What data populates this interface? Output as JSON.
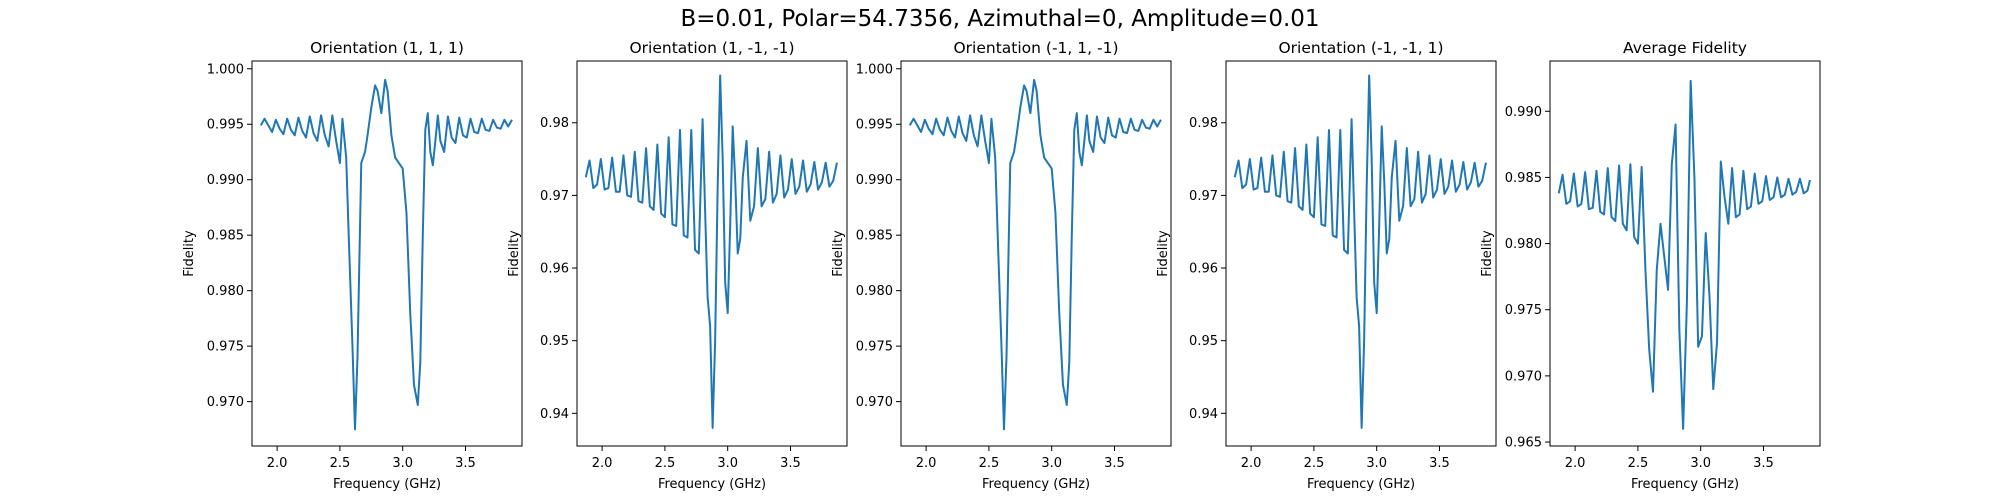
{
  "figure": {
    "suptitle": "B=0.01, Polar=54.7356, Azimuthal=0, Amplitude=0.01"
  },
  "colors": {
    "line": "#1f77b4",
    "axes": "#000000",
    "background": "#ffffff"
  },
  "chart_data": [
    {
      "type": "line",
      "title": "Orientation (1, 1, 1)",
      "xlabel": "Frequency (GHz)",
      "ylabel": "Fidelity",
      "xlim": [
        1.8,
        3.95
      ],
      "ylim": [
        0.966,
        1.0007
      ],
      "xticks": [
        "2.0",
        "2.5",
        "3.0",
        "3.5"
      ],
      "yticks": [
        "0.970",
        "0.975",
        "0.980",
        "0.985",
        "0.990",
        "0.995",
        "1.000"
      ],
      "grid": false,
      "series": [
        {
          "x": [
            1.87,
            1.9,
            1.93,
            1.96,
            1.99,
            2.02,
            2.05,
            2.08,
            2.11,
            2.14,
            2.17,
            2.2,
            2.23,
            2.26,
            2.29,
            2.32,
            2.35,
            2.38,
            2.41,
            2.44,
            2.47,
            2.5,
            2.52,
            2.55,
            2.57,
            2.6,
            2.62,
            2.64,
            2.67,
            2.7,
            2.72,
            2.75,
            2.78,
            2.8,
            2.83,
            2.86,
            2.88,
            2.91,
            2.94,
            2.97,
            3.0,
            3.03,
            3.06,
            3.09,
            3.12,
            3.14,
            3.16,
            3.18,
            3.2,
            3.22,
            3.24,
            3.26,
            3.28,
            3.3,
            3.33,
            3.36,
            3.39,
            3.42,
            3.45,
            3.48,
            3.51,
            3.54,
            3.57,
            3.6,
            3.63,
            3.66,
            3.69,
            3.72,
            3.75,
            3.78,
            3.81,
            3.84,
            3.87
          ],
          "y": [
            0.9949,
            0.9955,
            0.9949,
            0.9943,
            0.9954,
            0.9946,
            0.9941,
            0.9955,
            0.9945,
            0.994,
            0.9956,
            0.9944,
            0.9938,
            0.9957,
            0.9942,
            0.9935,
            0.9958,
            0.994,
            0.993,
            0.9958,
            0.9935,
            0.9915,
            0.9955,
            0.992,
            0.985,
            0.975,
            0.9675,
            0.974,
            0.9915,
            0.9925,
            0.994,
            0.9965,
            0.9985,
            0.998,
            0.996,
            0.999,
            0.998,
            0.994,
            0.992,
            0.9915,
            0.991,
            0.987,
            0.978,
            0.9715,
            0.9697,
            0.9735,
            0.985,
            0.9945,
            0.996,
            0.9925,
            0.9913,
            0.9935,
            0.9958,
            0.9935,
            0.9925,
            0.9957,
            0.9938,
            0.9933,
            0.9956,
            0.994,
            0.9938,
            0.9955,
            0.9943,
            0.9942,
            0.9955,
            0.9945,
            0.9944,
            0.9954,
            0.9947,
            0.9946,
            0.9954,
            0.9948,
            0.9954
          ]
        }
      ]
    },
    {
      "type": "line",
      "title": "Orientation (1, -1, -1)",
      "xlabel": "Frequency (GHz)",
      "ylabel": "Fidelity",
      "xlim": [
        1.8,
        3.95
      ],
      "ylim": [
        0.9355,
        0.9885
      ],
      "xticks": [
        "2.0",
        "2.5",
        "3.0",
        "3.5"
      ],
      "yticks": [
        "0.94",
        "0.95",
        "0.96",
        "0.97",
        "0.98"
      ],
      "grid": false,
      "series": [
        {
          "x": [
            1.87,
            1.9,
            1.93,
            1.96,
            1.99,
            2.02,
            2.05,
            2.08,
            2.11,
            2.14,
            2.17,
            2.2,
            2.23,
            2.26,
            2.29,
            2.32,
            2.35,
            2.38,
            2.41,
            2.44,
            2.47,
            2.5,
            2.53,
            2.56,
            2.59,
            2.62,
            2.65,
            2.68,
            2.71,
            2.74,
            2.77,
            2.8,
            2.82,
            2.84,
            2.86,
            2.88,
            2.9,
            2.92,
            2.94,
            2.96,
            2.98,
            3.0,
            3.02,
            3.04,
            3.06,
            3.08,
            3.1,
            3.12,
            3.15,
            3.18,
            3.21,
            3.24,
            3.27,
            3.3,
            3.33,
            3.36,
            3.39,
            3.42,
            3.45,
            3.48,
            3.51,
            3.54,
            3.57,
            3.6,
            3.63,
            3.66,
            3.69,
            3.72,
            3.75,
            3.78,
            3.81,
            3.84,
            3.87
          ],
          "y": [
            0.9725,
            0.9748,
            0.971,
            0.9715,
            0.975,
            0.9708,
            0.971,
            0.9752,
            0.9705,
            0.9705,
            0.9755,
            0.97,
            0.9698,
            0.976,
            0.9692,
            0.969,
            0.9765,
            0.9685,
            0.968,
            0.977,
            0.9675,
            0.967,
            0.978,
            0.966,
            0.9658,
            0.979,
            0.9645,
            0.9642,
            0.979,
            0.9625,
            0.962,
            0.9805,
            0.968,
            0.956,
            0.952,
            0.938,
            0.95,
            0.971,
            0.9865,
            0.975,
            0.958,
            0.9538,
            0.966,
            0.9795,
            0.972,
            0.962,
            0.964,
            0.9725,
            0.9775,
            0.9665,
            0.9685,
            0.9765,
            0.9685,
            0.9695,
            0.976,
            0.969,
            0.9702,
            0.9755,
            0.9697,
            0.9708,
            0.975,
            0.9702,
            0.9712,
            0.9748,
            0.9705,
            0.9715,
            0.9746,
            0.9708,
            0.9718,
            0.9745,
            0.9712,
            0.972,
            0.9745
          ]
        }
      ]
    },
    {
      "type": "line",
      "title": "Orientation (-1, 1, -1)",
      "xlabel": "Frequency (GHz)",
      "ylabel": "Fidelity",
      "xlim": [
        1.8,
        3.95
      ],
      "ylim": [
        0.966,
        1.0007
      ],
      "xticks": [
        "2.0",
        "2.5",
        "3.0",
        "3.5"
      ],
      "yticks": [
        "0.970",
        "0.975",
        "0.980",
        "0.985",
        "0.990",
        "0.995",
        "1.000"
      ],
      "grid": false,
      "series": [
        {
          "x": [
            1.87,
            1.9,
            1.93,
            1.96,
            1.99,
            2.02,
            2.05,
            2.08,
            2.11,
            2.14,
            2.17,
            2.2,
            2.23,
            2.26,
            2.29,
            2.32,
            2.35,
            2.38,
            2.41,
            2.44,
            2.47,
            2.5,
            2.52,
            2.55,
            2.57,
            2.6,
            2.62,
            2.64,
            2.67,
            2.7,
            2.72,
            2.75,
            2.78,
            2.8,
            2.83,
            2.86,
            2.88,
            2.91,
            2.94,
            2.97,
            3.0,
            3.03,
            3.06,
            3.09,
            3.12,
            3.14,
            3.16,
            3.18,
            3.2,
            3.22,
            3.24,
            3.26,
            3.28,
            3.3,
            3.33,
            3.36,
            3.39,
            3.42,
            3.45,
            3.48,
            3.51,
            3.54,
            3.57,
            3.6,
            3.63,
            3.66,
            3.69,
            3.72,
            3.75,
            3.78,
            3.81,
            3.84,
            3.87
          ],
          "y": [
            0.9949,
            0.9955,
            0.9949,
            0.9943,
            0.9954,
            0.9946,
            0.9941,
            0.9955,
            0.9945,
            0.994,
            0.9956,
            0.9944,
            0.9938,
            0.9957,
            0.9942,
            0.9935,
            0.9958,
            0.994,
            0.993,
            0.9958,
            0.9935,
            0.9915,
            0.9955,
            0.992,
            0.985,
            0.975,
            0.9675,
            0.974,
            0.9915,
            0.9925,
            0.994,
            0.9965,
            0.9985,
            0.998,
            0.996,
            0.999,
            0.998,
            0.994,
            0.992,
            0.9915,
            0.991,
            0.987,
            0.978,
            0.9715,
            0.9697,
            0.9735,
            0.985,
            0.9945,
            0.996,
            0.9925,
            0.9913,
            0.9935,
            0.9958,
            0.9935,
            0.9925,
            0.9957,
            0.9938,
            0.9933,
            0.9956,
            0.994,
            0.9938,
            0.9955,
            0.9943,
            0.9942,
            0.9955,
            0.9945,
            0.9944,
            0.9954,
            0.9947,
            0.9946,
            0.9954,
            0.9948,
            0.9954
          ]
        }
      ]
    },
    {
      "type": "line",
      "title": "Orientation (-1, -1, 1)",
      "xlabel": "Frequency (GHz)",
      "ylabel": "Fidelity",
      "xlim": [
        1.8,
        3.95
      ],
      "ylim": [
        0.9355,
        0.9885
      ],
      "xticks": [
        "2.0",
        "2.5",
        "3.0",
        "3.5"
      ],
      "yticks": [
        "0.94",
        "0.95",
        "0.96",
        "0.97",
        "0.98"
      ],
      "grid": false,
      "series": [
        {
          "x": [
            1.87,
            1.9,
            1.93,
            1.96,
            1.99,
            2.02,
            2.05,
            2.08,
            2.11,
            2.14,
            2.17,
            2.2,
            2.23,
            2.26,
            2.29,
            2.32,
            2.35,
            2.38,
            2.41,
            2.44,
            2.47,
            2.5,
            2.53,
            2.56,
            2.59,
            2.62,
            2.65,
            2.68,
            2.71,
            2.74,
            2.77,
            2.8,
            2.82,
            2.84,
            2.86,
            2.88,
            2.9,
            2.92,
            2.94,
            2.96,
            2.98,
            3.0,
            3.02,
            3.04,
            3.06,
            3.08,
            3.1,
            3.12,
            3.15,
            3.18,
            3.21,
            3.24,
            3.27,
            3.3,
            3.33,
            3.36,
            3.39,
            3.42,
            3.45,
            3.48,
            3.51,
            3.54,
            3.57,
            3.6,
            3.63,
            3.66,
            3.69,
            3.72,
            3.75,
            3.78,
            3.81,
            3.84,
            3.87
          ],
          "y": [
            0.9725,
            0.9748,
            0.971,
            0.9715,
            0.975,
            0.9708,
            0.971,
            0.9752,
            0.9705,
            0.9705,
            0.9755,
            0.97,
            0.9698,
            0.976,
            0.9692,
            0.969,
            0.9765,
            0.9685,
            0.968,
            0.977,
            0.9675,
            0.967,
            0.978,
            0.966,
            0.9658,
            0.979,
            0.9645,
            0.9642,
            0.979,
            0.9625,
            0.962,
            0.9805,
            0.968,
            0.956,
            0.952,
            0.938,
            0.95,
            0.971,
            0.9865,
            0.975,
            0.958,
            0.9538,
            0.966,
            0.9795,
            0.972,
            0.962,
            0.964,
            0.9725,
            0.9775,
            0.9665,
            0.9685,
            0.9765,
            0.9685,
            0.9695,
            0.976,
            0.969,
            0.9702,
            0.9755,
            0.9697,
            0.9708,
            0.975,
            0.9702,
            0.9712,
            0.9748,
            0.9705,
            0.9715,
            0.9746,
            0.9708,
            0.9718,
            0.9745,
            0.9712,
            0.972,
            0.9745
          ]
        }
      ]
    },
    {
      "type": "line",
      "title": "Average Fidelity",
      "xlabel": "Frequency (GHz)",
      "ylabel": "Fidelity",
      "xlim": [
        1.8,
        3.95
      ],
      "ylim": [
        0.9647,
        0.9938
      ],
      "xticks": [
        "2.0",
        "2.5",
        "3.0",
        "3.5"
      ],
      "yticks": [
        "0.965",
        "0.970",
        "0.975",
        "0.980",
        "0.985",
        "0.990"
      ],
      "grid": false,
      "series": [
        {
          "x": [
            1.87,
            1.9,
            1.93,
            1.96,
            1.99,
            2.02,
            2.05,
            2.08,
            2.11,
            2.14,
            2.17,
            2.2,
            2.23,
            2.26,
            2.29,
            2.32,
            2.35,
            2.38,
            2.41,
            2.44,
            2.47,
            2.5,
            2.53,
            2.56,
            2.59,
            2.62,
            2.65,
            2.68,
            2.71,
            2.74,
            2.77,
            2.8,
            2.83,
            2.86,
            2.89,
            2.92,
            2.95,
            2.98,
            3.01,
            3.04,
            3.07,
            3.1,
            3.13,
            3.16,
            3.19,
            3.22,
            3.25,
            3.28,
            3.31,
            3.34,
            3.37,
            3.4,
            3.43,
            3.46,
            3.49,
            3.52,
            3.55,
            3.58,
            3.61,
            3.64,
            3.67,
            3.7,
            3.73,
            3.76,
            3.79,
            3.82,
            3.85,
            3.87
          ],
          "y": [
            0.9838,
            0.9852,
            0.983,
            0.9832,
            0.9853,
            0.9828,
            0.983,
            0.9854,
            0.9826,
            0.9827,
            0.9855,
            0.9824,
            0.9822,
            0.9857,
            0.982,
            0.9817,
            0.9859,
            0.9815,
            0.981,
            0.986,
            0.9805,
            0.98,
            0.9858,
            0.978,
            0.972,
            0.9688,
            0.978,
            0.9815,
            0.979,
            0.9765,
            0.986,
            0.989,
            0.9735,
            0.966,
            0.9755,
            0.9923,
            0.985,
            0.9722,
            0.973,
            0.9808,
            0.976,
            0.969,
            0.9725,
            0.9862,
            0.9835,
            0.9815,
            0.9857,
            0.982,
            0.9822,
            0.9855,
            0.9826,
            0.9828,
            0.9853,
            0.983,
            0.9832,
            0.9851,
            0.9833,
            0.9835,
            0.985,
            0.9835,
            0.9837,
            0.9849,
            0.9837,
            0.9839,
            0.9849,
            0.9838,
            0.984,
            0.9848
          ]
        }
      ]
    }
  ]
}
